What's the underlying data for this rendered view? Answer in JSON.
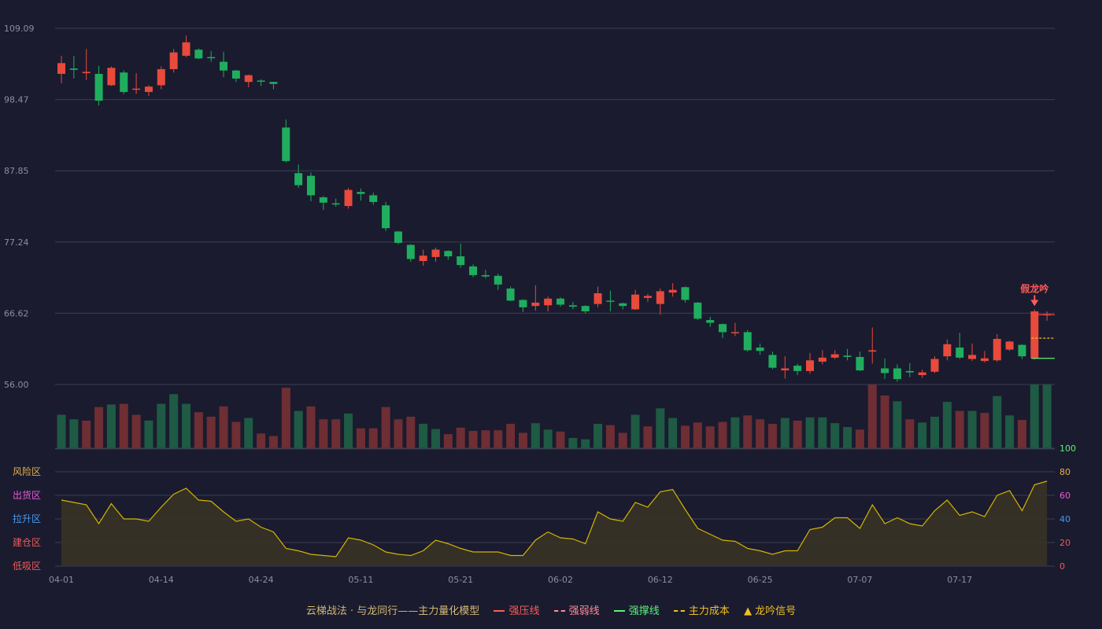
{
  "chart_data": {
    "type": "candlestick",
    "price_axis": {
      "ticks": [
        "109.09",
        "98.47",
        "87.85",
        "77.24",
        "66.62",
        "56.00"
      ],
      "ylim": [
        56.0,
        109.09
      ]
    },
    "x_ticks": [
      {
        "i": 0,
        "label": "04-01"
      },
      {
        "i": 8,
        "label": "04-14"
      },
      {
        "i": 16,
        "label": "04-24"
      },
      {
        "i": 24,
        "label": "05-11"
      },
      {
        "i": 32,
        "label": "05-21"
      },
      {
        "i": 40,
        "label": "06-02"
      },
      {
        "i": 48,
        "label": "06-12"
      },
      {
        "i": 56,
        "label": "06-25"
      },
      {
        "i": 64,
        "label": "07-07"
      },
      {
        "i": 72,
        "label": "07-17"
      }
    ],
    "candles": [
      [
        102.3,
        103.9,
        100.9,
        105.0
      ],
      [
        103.1,
        102.9,
        101.6,
        105.0
      ],
      [
        102.4,
        102.6,
        101.4,
        106.0
      ],
      [
        102.3,
        98.3,
        97.6,
        103.5
      ],
      [
        100.6,
        103.2,
        100.5,
        103.4
      ],
      [
        102.5,
        99.6,
        99.3,
        102.8
      ],
      [
        100.0,
        100.1,
        99.3,
        102.4
      ],
      [
        99.6,
        100.4,
        99.0,
        100.6
      ],
      [
        100.6,
        103.0,
        100.0,
        103.4
      ],
      [
        103.0,
        105.5,
        102.5,
        106.0
      ],
      [
        105.0,
        107.0,
        104.8,
        108.0
      ],
      [
        105.9,
        104.6,
        104.5,
        106.1
      ],
      [
        104.8,
        104.7,
        104.1,
        105.7
      ],
      [
        104.1,
        102.8,
        101.8,
        105.6
      ],
      [
        102.8,
        101.6,
        101.1,
        102.9
      ],
      [
        101.1,
        102.1,
        100.3,
        102.2
      ],
      [
        101.3,
        101.2,
        100.5,
        101.5
      ],
      [
        101.1,
        100.8,
        100.0,
        101.1
      ],
      [
        94.3,
        89.3,
        89.1,
        95.5
      ],
      [
        87.5,
        85.7,
        85.3,
        88.8
      ],
      [
        87.1,
        84.2,
        83.3,
        87.6
      ],
      [
        83.9,
        83.1,
        82.0,
        84.1
      ],
      [
        83.0,
        82.9,
        82.5,
        83.7
      ],
      [
        82.6,
        85.0,
        82.2,
        85.3
      ],
      [
        84.7,
        84.4,
        83.4,
        85.2
      ],
      [
        84.2,
        83.2,
        82.8,
        84.6
      ],
      [
        82.7,
        79.3,
        78.9,
        83.2
      ],
      [
        78.8,
        77.1,
        76.9,
        78.9
      ],
      [
        76.8,
        74.7,
        74.3,
        76.9
      ],
      [
        74.4,
        75.2,
        73.7,
        76.1
      ],
      [
        75.0,
        76.1,
        74.3,
        76.4
      ],
      [
        75.9,
        75.1,
        74.6,
        76.0
      ],
      [
        75.1,
        73.8,
        73.4,
        77.0
      ],
      [
        73.6,
        72.3,
        72.0,
        73.9
      ],
      [
        72.3,
        72.1,
        71.8,
        73.1
      ],
      [
        72.2,
        70.9,
        70.1,
        72.5
      ],
      [
        70.3,
        68.5,
        68.4,
        70.6
      ],
      [
        68.6,
        67.5,
        66.8,
        68.7
      ],
      [
        67.7,
        68.2,
        67.0,
        70.8
      ],
      [
        67.8,
        68.8,
        66.9,
        69.1
      ],
      [
        68.8,
        67.9,
        67.6,
        69.0
      ],
      [
        67.8,
        67.6,
        67.2,
        68.3
      ],
      [
        67.7,
        66.9,
        66.6,
        67.8
      ],
      [
        68.0,
        69.6,
        67.5,
        70.6
      ],
      [
        68.5,
        68.4,
        66.9,
        70.0
      ],
      [
        68.1,
        67.7,
        67.2,
        68.2
      ],
      [
        67.2,
        69.4,
        67.1,
        70.1
      ],
      [
        68.9,
        69.2,
        68.3,
        69.5
      ],
      [
        68.0,
        69.9,
        66.4,
        70.3
      ],
      [
        69.7,
        70.1,
        69.1,
        71.1
      ],
      [
        70.5,
        68.6,
        68.2,
        70.6
      ],
      [
        68.2,
        65.8,
        65.6,
        68.3
      ],
      [
        65.6,
        65.2,
        64.6,
        66.1
      ],
      [
        65.0,
        63.8,
        62.9,
        65.1
      ],
      [
        63.8,
        63.8,
        63.2,
        65.2
      ],
      [
        63.8,
        61.1,
        60.9,
        64.1
      ],
      [
        61.5,
        61.0,
        60.4,
        62.1
      ],
      [
        60.4,
        58.5,
        58.3,
        60.9
      ],
      [
        58.1,
        58.4,
        56.9,
        60.2
      ],
      [
        58.8,
        58.0,
        57.4,
        59.1
      ],
      [
        58.0,
        59.6,
        57.6,
        60.7
      ],
      [
        59.4,
        60.0,
        59.0,
        61.1
      ],
      [
        60.0,
        60.5,
        59.8,
        61.1
      ],
      [
        60.3,
        60.1,
        59.6,
        61.3
      ],
      [
        60.1,
        58.1,
        58.0,
        60.9
      ],
      [
        60.9,
        61.1,
        59.1,
        64.5
      ],
      [
        58.4,
        57.7,
        56.8,
        59.9
      ],
      [
        58.4,
        56.8,
        56.4,
        59.0
      ],
      [
        58.0,
        57.8,
        57.1,
        59.2
      ],
      [
        57.4,
        57.8,
        57.0,
        58.2
      ],
      [
        57.9,
        59.8,
        57.7,
        60.2
      ],
      [
        60.2,
        62.0,
        59.6,
        62.7
      ],
      [
        61.5,
        60.0,
        59.8,
        63.7
      ],
      [
        59.8,
        60.4,
        59.5,
        62.1
      ],
      [
        59.5,
        59.9,
        59.3,
        61.0
      ],
      [
        59.6,
        62.8,
        59.4,
        63.5
      ],
      [
        61.2,
        62.4,
        61.0,
        62.5
      ],
      [
        61.9,
        60.2,
        59.8,
        62.0
      ],
      [
        59.9,
        66.9,
        59.7,
        67.2
      ],
      [
        66.3,
        66.5,
        65.5,
        66.9
      ]
    ],
    "reference_lines": [
      {
        "name": "强压线",
        "color": "#e84a4a",
        "style": "solid",
        "price": 66.4
      },
      {
        "name": "主力成本",
        "color": "#f0c020",
        "style": "dashed",
        "price": 62.9
      },
      {
        "name": "强撑线",
        "color": "#5cf07a",
        "style": "solid",
        "price": 59.9
      }
    ],
    "volume": [
      [
        0,
        0.53
      ],
      [
        0,
        0.46
      ],
      [
        1,
        0.44
      ],
      [
        1,
        0.65
      ],
      [
        0,
        0.69
      ],
      [
        1,
        0.7
      ],
      [
        1,
        0.53
      ],
      [
        0,
        0.44
      ],
      [
        0,
        0.7
      ],
      [
        0,
        0.85
      ],
      [
        0,
        0.7
      ],
      [
        1,
        0.57
      ],
      [
        1,
        0.5
      ],
      [
        1,
        0.66
      ],
      [
        1,
        0.42
      ],
      [
        0,
        0.48
      ],
      [
        1,
        0.24
      ],
      [
        1,
        0.2
      ],
      [
        1,
        0.95
      ],
      [
        0,
        0.59
      ],
      [
        1,
        0.66
      ],
      [
        1,
        0.46
      ],
      [
        1,
        0.46
      ],
      [
        0,
        0.55
      ],
      [
        1,
        0.32
      ],
      [
        1,
        0.32
      ],
      [
        1,
        0.65
      ],
      [
        1,
        0.46
      ],
      [
        1,
        0.5
      ],
      [
        0,
        0.39
      ],
      [
        0,
        0.31
      ],
      [
        1,
        0.23
      ],
      [
        1,
        0.33
      ],
      [
        1,
        0.28
      ],
      [
        1,
        0.29
      ],
      [
        1,
        0.29
      ],
      [
        1,
        0.39
      ],
      [
        1,
        0.25
      ],
      [
        0,
        0.4
      ],
      [
        0,
        0.3
      ],
      [
        1,
        0.27
      ],
      [
        0,
        0.17
      ],
      [
        0,
        0.15
      ],
      [
        0,
        0.39
      ],
      [
        1,
        0.37
      ],
      [
        1,
        0.25
      ],
      [
        0,
        0.53
      ],
      [
        1,
        0.35
      ],
      [
        0,
        0.63
      ],
      [
        0,
        0.48
      ],
      [
        1,
        0.36
      ],
      [
        1,
        0.41
      ],
      [
        1,
        0.35
      ],
      [
        1,
        0.42
      ],
      [
        0,
        0.49
      ],
      [
        1,
        0.52
      ],
      [
        1,
        0.46
      ],
      [
        1,
        0.39
      ],
      [
        0,
        0.48
      ],
      [
        1,
        0.44
      ],
      [
        0,
        0.49
      ],
      [
        0,
        0.49
      ],
      [
        0,
        0.4
      ],
      [
        0,
        0.34
      ],
      [
        1,
        0.3
      ],
      [
        1,
        1.0
      ],
      [
        1,
        0.83
      ],
      [
        0,
        0.74
      ],
      [
        1,
        0.46
      ],
      [
        0,
        0.41
      ],
      [
        0,
        0.5
      ],
      [
        0,
        0.73
      ],
      [
        1,
        0.59
      ],
      [
        0,
        0.59
      ],
      [
        1,
        0.56
      ],
      [
        0,
        0.82
      ],
      [
        0,
        0.52
      ],
      [
        1,
        0.45
      ],
      [
        0,
        1.0
      ],
      [
        0,
        1.0
      ]
    ],
    "indicator": {
      "ylim": [
        0,
        100
      ],
      "ticks": [
        "100",
        "80",
        "60",
        "40",
        "20",
        "0"
      ],
      "zones": [
        {
          "label": "风险区",
          "color": "#e8b04a",
          "level": 80
        },
        {
          "label": "出货区",
          "color": "#e85ad8",
          "level": 60
        },
        {
          "label": "拉升区",
          "color": "#4a9aee",
          "level": 40
        },
        {
          "label": "建仓区",
          "color": "#ee5a5a",
          "level": 20
        },
        {
          "label": "低吸区",
          "color": "#ee5a5a",
          "level": 0
        }
      ],
      "values": [
        56,
        54,
        52,
        36,
        53,
        40,
        40,
        38,
        50,
        61,
        66,
        56,
        55,
        46,
        38,
        40,
        33,
        29,
        15,
        13,
        10,
        9,
        8,
        24,
        22,
        18,
        12,
        10,
        9,
        13,
        22,
        19,
        15,
        12,
        12,
        12,
        9,
        9,
        22,
        29,
        24,
        23,
        19,
        46,
        40,
        38,
        54,
        50,
        63,
        65,
        48,
        32,
        27,
        22,
        21,
        15,
        13,
        10,
        13,
        13,
        31,
        33,
        41,
        41,
        32,
        52,
        36,
        41,
        36,
        34,
        47,
        56,
        43,
        46,
        42,
        60,
        64,
        47,
        69,
        72
      ]
    },
    "signal": {
      "label": "假龙吟",
      "index": 78
    }
  },
  "legend": {
    "title": "云梯战法 · 与龙同行——主力量化模型",
    "items": [
      {
        "label": "强压线",
        "color": "#ff5a5a",
        "style": "solid"
      },
      {
        "label": "强弱线",
        "color": "#ff8a9a",
        "style": "dashed"
      },
      {
        "label": "强撑线",
        "color": "#5cf07a",
        "style": "solid"
      },
      {
        "label": "主力成本",
        "color": "#f0c020",
        "style": "dashed"
      },
      {
        "label": "龙吟信号",
        "color": "#f0c020",
        "style": "triangle",
        "glyph": "▲"
      }
    ]
  },
  "colors": {
    "up": "#e84a3c",
    "down": "#1fae5e",
    "vol_up": "#6e2e34",
    "vol_down": "#1e5a44",
    "grid": "#3b3e52",
    "axis_text": "#8a8fa3",
    "indicator_line": "#d4b400",
    "indicator_fill": "#3a3424",
    "signal": "#ff5a5a"
  }
}
